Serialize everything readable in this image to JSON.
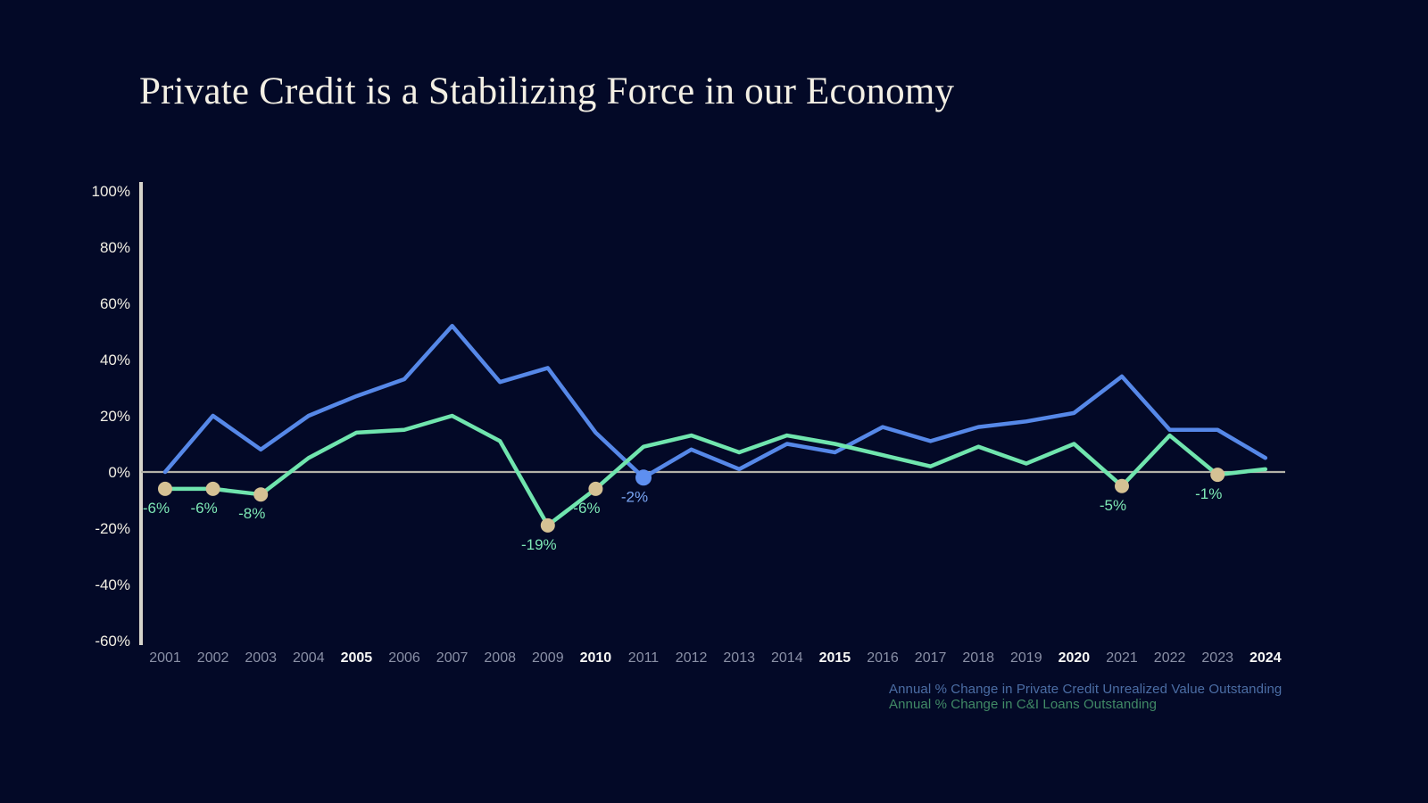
{
  "title": "Private Credit is a Stabilizing Force in our Economy",
  "legend": {
    "private_credit": "Annual % Change in Private Credit Unrealized Value Outstanding",
    "ci_loans": "Annual % Change in C&I Loans Outstanding"
  },
  "colors": {
    "background": "#030927",
    "title_color": "#f3efe4",
    "axis_line": "#d6d4cb",
    "zero_line": "#b3b1a8",
    "y_tick_label": "#f1eee3",
    "x_label": "#8a90a6",
    "x_label_bold": "#f7f7f5",
    "blue_line": "#5688e8",
    "green_line": "#70e5ae",
    "dot_tan": "#d5c194",
    "dot_blue": "#5e8ff0",
    "annotation_green": "#7ee9b6",
    "annotation_blue": "#79a5f3",
    "legend_blue": "#4b6da4",
    "legend_green": "#418a66"
  },
  "chart_data": {
    "type": "line",
    "title": "Private Credit is a Stabilizing Force in our Economy",
    "xlabel": "",
    "ylabel": "",
    "x": [
      2001,
      2002,
      2003,
      2004,
      2005,
      2006,
      2007,
      2008,
      2009,
      2010,
      2011,
      2012,
      2013,
      2014,
      2015,
      2016,
      2017,
      2018,
      2019,
      2020,
      2021,
      2022,
      2023,
      2024
    ],
    "series": [
      {
        "name": "Annual % Change in Private Credit Unrealized Value Outstanding",
        "color_key": "blue_line",
        "values": [
          0,
          20,
          8,
          20,
          27,
          33,
          52,
          32,
          37,
          14,
          -2,
          8,
          1,
          10,
          7,
          16,
          11,
          16,
          18,
          21,
          34,
          15,
          15,
          5
        ]
      },
      {
        "name": "Annual % Change in C&I Loans Outstanding",
        "color_key": "green_line",
        "values": [
          -6,
          -6,
          -8,
          5,
          14,
          15,
          20,
          11,
          -19,
          -6,
          9,
          13,
          7,
          13,
          10,
          6,
          2,
          9,
          3,
          10,
          -5,
          13,
          -1,
          1
        ]
      }
    ],
    "ylim": [
      -60,
      100
    ],
    "yticks": [
      100,
      80,
      60,
      40,
      20,
      0,
      -20,
      -40,
      -60
    ],
    "ytick_suffix": "%",
    "bold_x_labels": [
      2005,
      2010,
      2015,
      2020,
      2024
    ],
    "grid": false,
    "zero_line": true,
    "legend_position": "bottom-right",
    "annotations": [
      {
        "series": 1,
        "year": 2001,
        "label": "-6%"
      },
      {
        "series": 1,
        "year": 2002,
        "label": "-6%"
      },
      {
        "series": 1,
        "year": 2003,
        "label": "-8%"
      },
      {
        "series": 1,
        "year": 2009,
        "label": "-19%"
      },
      {
        "series": 1,
        "year": 2010,
        "label": "-6%"
      },
      {
        "series": 0,
        "year": 2011,
        "label": "-2%"
      },
      {
        "series": 1,
        "year": 2021,
        "label": "-5%"
      },
      {
        "series": 1,
        "year": 2023,
        "label": "-1%"
      }
    ]
  }
}
